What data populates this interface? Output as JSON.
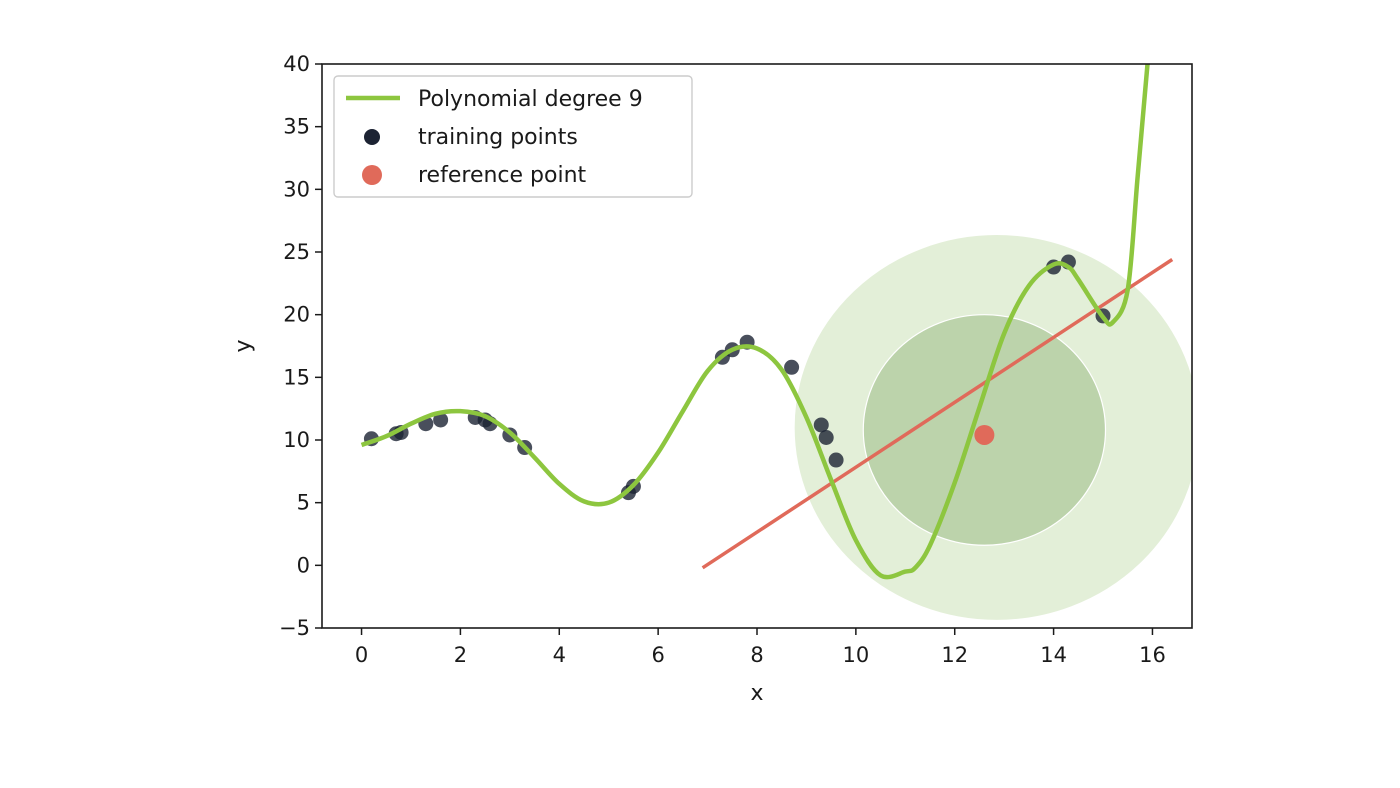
{
  "chart_data": {
    "type": "scatter",
    "xlabel": "x",
    "ylabel": "y",
    "xlim": [
      -0.8,
      16.8
    ],
    "ylim": [
      -5,
      40
    ],
    "xticks": [
      0,
      2,
      4,
      6,
      8,
      10,
      12,
      14,
      16
    ],
    "yticks": [
      -5,
      0,
      5,
      10,
      15,
      20,
      25,
      30,
      35,
      40
    ],
    "xtick_labels": [
      "0",
      "2",
      "4",
      "6",
      "8",
      "10",
      "12",
      "14",
      "16"
    ],
    "ytick_labels": [
      "−5",
      "0",
      "5",
      "10",
      "15",
      "20",
      "25",
      "30",
      "35",
      "40"
    ],
    "legend_position": "upper-left",
    "colors": {
      "polynomial": "#8dc63f",
      "training": "#1c2333",
      "reference": "#e06a5a",
      "outer_circle": "#e3efd8",
      "inner_circle": "#bcd3ab"
    },
    "series": [
      {
        "name": "Polynomial degree 9",
        "kind": "line",
        "x": [
          0.0,
          0.5,
          1.0,
          1.5,
          2.0,
          2.5,
          3.0,
          3.5,
          4.0,
          4.5,
          5.0,
          5.5,
          6.0,
          6.5,
          7.0,
          7.5,
          8.0,
          8.5,
          9.0,
          9.5,
          10.0,
          10.5,
          11.0,
          11.2,
          11.5,
          12.0,
          12.5,
          13.0,
          13.5,
          14.0,
          14.3,
          14.5,
          15.0,
          15.2,
          15.5,
          15.7,
          15.9
        ],
        "y": [
          9.6,
          10.3,
          11.3,
          12.1,
          12.3,
          11.9,
          10.6,
          8.6,
          6.5,
          5.1,
          5.0,
          6.4,
          9.0,
          12.3,
          15.5,
          17.2,
          17.3,
          15.6,
          11.8,
          6.8,
          2.0,
          -0.8,
          -0.5,
          -0.2,
          1.6,
          6.6,
          12.6,
          18.5,
          22.3,
          24.0,
          23.8,
          22.8,
          19.8,
          19.4,
          22.0,
          31.0,
          40.0
        ]
      },
      {
        "name": "training points",
        "kind": "scatter",
        "x": [
          0.2,
          0.7,
          0.8,
          1.3,
          1.6,
          2.3,
          2.5,
          2.6,
          3.0,
          3.3,
          5.4,
          5.5,
          7.3,
          7.5,
          7.8,
          8.7,
          9.3,
          9.4,
          9.6,
          14.0,
          14.3,
          15.0
        ],
        "y": [
          10.1,
          10.5,
          10.6,
          11.3,
          11.6,
          11.8,
          11.6,
          11.3,
          10.4,
          9.4,
          5.8,
          6.3,
          16.6,
          17.2,
          17.8,
          15.8,
          11.2,
          10.2,
          8.4,
          23.8,
          24.2,
          19.9
        ]
      },
      {
        "name": "reference point",
        "kind": "scatter",
        "x": [
          12.6
        ],
        "y": [
          10.4
        ]
      }
    ],
    "fit_line": {
      "x": [
        6.9,
        16.4
      ],
      "y": [
        -0.2,
        24.4
      ]
    },
    "neighborhoods": [
      {
        "cx": 12.85,
        "cy": 11.0,
        "rx": 4.1,
        "ry": 15.4,
        "level": "outer"
      },
      {
        "cx": 12.6,
        "cy": 10.8,
        "rx": 2.45,
        "ry": 9.2,
        "level": "inner"
      }
    ]
  }
}
